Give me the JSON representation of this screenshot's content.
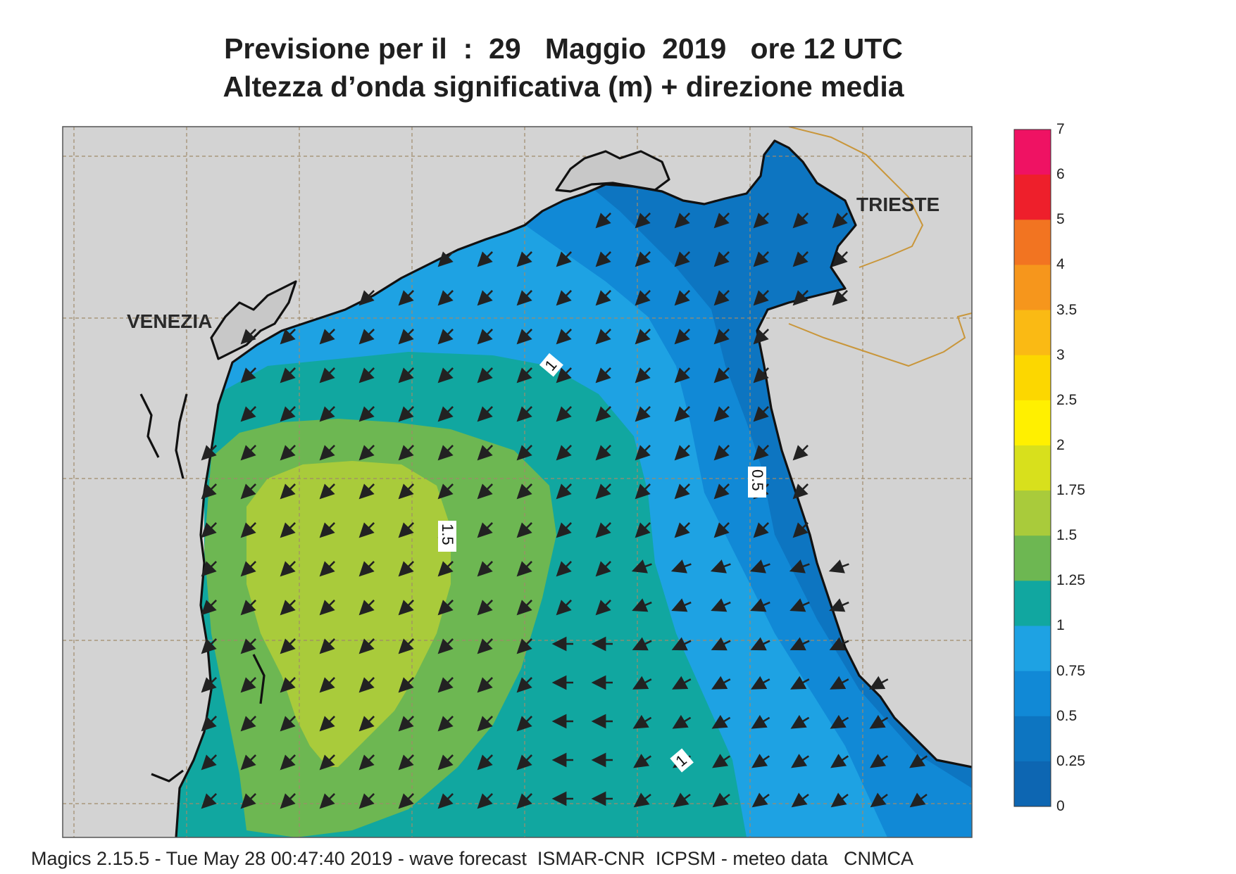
{
  "header": {
    "title_line1": "Previsione per il  :  29   Maggio  2019   ore 12 UTC",
    "title_line2": "Altezza d’onda significativa (m) + direzione media"
  },
  "map": {
    "cities": [
      {
        "name": "VENEZIA"
      },
      {
        "name": "TRIESTE"
      }
    ],
    "contour_labels": [
      "1",
      "1.5",
      "0.5",
      "1"
    ],
    "land_color": "#d3d3d3",
    "coast_color": "#111111",
    "border_color": "#c9963a",
    "grid_color": "#a08a6a",
    "arrow_color": "#222222"
  },
  "colorbar": {
    "labels": [
      "7",
      "6",
      "5",
      "4",
      "3.5",
      "3",
      "2.5",
      "2",
      "1.75",
      "1.5",
      "1.25",
      "1",
      "0.75",
      "0.5",
      "0.25",
      "0"
    ],
    "colors": [
      "#ef1263",
      "#ee1f2b",
      "#f27421",
      "#f6961c",
      "#faba14",
      "#fcd700",
      "#fff000",
      "#d8e01c",
      "#a9cb3b",
      "#6db752",
      "#11a7a0",
      "#1ea2e3",
      "#1189d6",
      "#0d75c1",
      "#0d66b2"
    ]
  },
  "footer": {
    "text": "Magics 2.15.5 - Tue May 28 00:47:40 2019 - wave forecast  ISMAR-CNR  ICPSM - meteo data   CNMCA"
  }
}
